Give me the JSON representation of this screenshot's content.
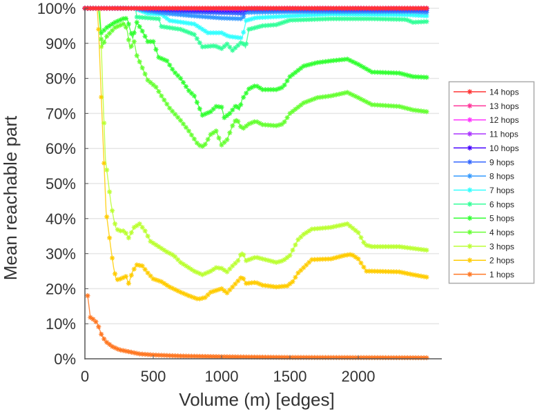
{
  "chart_data": {
    "type": "line",
    "title": "",
    "xlabel": "Volume (m) [edges]",
    "ylabel": "Mean reachable part",
    "xlim": [
      0,
      2510
    ],
    "ylim": [
      0,
      100
    ],
    "x_ticks": [
      0,
      500,
      1000,
      1500,
      2000
    ],
    "x_tick_labels": [
      "0",
      "500",
      "1000",
      "1500",
      "2000"
    ],
    "y_ticks": [
      0,
      10,
      20,
      30,
      40,
      50,
      60,
      70,
      80,
      90,
      100
    ],
    "y_tick_labels": [
      "0%",
      "10%",
      "20%",
      "30%",
      "40%",
      "50%",
      "60%",
      "70%",
      "80%",
      "90%",
      "100%"
    ],
    "grid": "horizontal",
    "legend_position": "right",
    "marker": "star",
    "series": [
      {
        "name": "14 hops",
        "color": "#ff3333",
        "points": [
          [
            0,
            100
          ],
          [
            2500,
            100
          ]
        ]
      },
      {
        "name": "13 hops",
        "color": "#ff3399",
        "points": [
          [
            0,
            100
          ],
          [
            2500,
            100
          ]
        ]
      },
      {
        "name": "12 hops",
        "color": "#ff33ff",
        "points": [
          [
            0,
            100
          ],
          [
            2500,
            100
          ]
        ]
      },
      {
        "name": "11 hops",
        "color": "#aa33ff",
        "points": [
          [
            0,
            100
          ],
          [
            380,
            100
          ],
          [
            700,
            99.9
          ],
          [
            1150,
            99.8
          ],
          [
            1200,
            100
          ],
          [
            2500,
            100
          ]
        ]
      },
      {
        "name": "10 hops",
        "color": "#4400ff",
        "points": [
          [
            0,
            100
          ],
          [
            380,
            100
          ],
          [
            600,
            99.7
          ],
          [
            900,
            99.5
          ],
          [
            1150,
            99.4
          ],
          [
            1200,
            99.9
          ],
          [
            2500,
            99.9
          ]
        ]
      },
      {
        "name": "9 hops",
        "color": "#3366ff",
        "points": [
          [
            0,
            100
          ],
          [
            370,
            100
          ],
          [
            500,
            99.5
          ],
          [
            700,
            99
          ],
          [
            900,
            98.8
          ],
          [
            1100,
            98.6
          ],
          [
            1160,
            98.5
          ],
          [
            1180,
            99.5
          ],
          [
            1500,
            99.6
          ],
          [
            2500,
            99.4
          ]
        ]
      },
      {
        "name": "8 hops",
        "color": "#3399ff",
        "points": [
          [
            0,
            100
          ],
          [
            370,
            100
          ],
          [
            450,
            99.3
          ],
          [
            600,
            98.5
          ],
          [
            800,
            97.8
          ],
          [
            1000,
            97.2
          ],
          [
            1150,
            97
          ],
          [
            1180,
            98.8
          ],
          [
            1500,
            99
          ],
          [
            2400,
            99
          ],
          [
            2500,
            98.8
          ]
        ]
      },
      {
        "name": "7 hops",
        "color": "#33ffff",
        "points": [
          [
            0,
            100
          ],
          [
            360,
            100
          ],
          [
            460,
            98.5
          ],
          [
            560,
            98.3
          ],
          [
            620,
            96.5
          ],
          [
            800,
            95.5
          ],
          [
            900,
            93
          ],
          [
            1000,
            93
          ],
          [
            1050,
            92
          ],
          [
            1150,
            91.5
          ],
          [
            1180,
            96.5
          ],
          [
            1250,
            97.3
          ],
          [
            1500,
            97.8
          ],
          [
            1800,
            98.3
          ],
          [
            2100,
            98.2
          ],
          [
            2380,
            98.1
          ],
          [
            2500,
            97.8
          ]
        ]
      },
      {
        "name": "6 hops",
        "color": "#33ff99",
        "points": [
          [
            0,
            100
          ],
          [
            370,
            100
          ],
          [
            380,
            97.5
          ],
          [
            540,
            97
          ],
          [
            560,
            94.8
          ],
          [
            700,
            94
          ],
          [
            800,
            92.5
          ],
          [
            860,
            89
          ],
          [
            950,
            89.3
          ],
          [
            1000,
            88.5
          ],
          [
            1040,
            89.8
          ],
          [
            1080,
            88
          ],
          [
            1150,
            90.5
          ],
          [
            1175,
            88.8
          ],
          [
            1200,
            94
          ],
          [
            1300,
            95
          ],
          [
            1400,
            95.3
          ],
          [
            1500,
            96.6
          ],
          [
            1800,
            97
          ],
          [
            2100,
            97
          ],
          [
            2350,
            96.8
          ],
          [
            2400,
            96
          ],
          [
            2500,
            96.2
          ]
        ]
      },
      {
        "name": "5 hops",
        "color": "#33ff33",
        "points": [
          [
            0,
            100
          ],
          [
            100,
            100
          ],
          [
            120,
            93
          ],
          [
            160,
            94.5
          ],
          [
            220,
            96
          ],
          [
            290,
            97.2
          ],
          [
            310,
            97
          ],
          [
            330,
            94
          ],
          [
            350,
            91.5
          ],
          [
            380,
            96
          ],
          [
            420,
            93.5
          ],
          [
            460,
            90.5
          ],
          [
            500,
            90.5
          ],
          [
            540,
            86
          ],
          [
            600,
            85
          ],
          [
            650,
            82
          ],
          [
            700,
            80
          ],
          [
            760,
            76.5
          ],
          [
            800,
            75
          ],
          [
            860,
            69.5
          ],
          [
            920,
            70.5
          ],
          [
            960,
            72
          ],
          [
            1000,
            71.8
          ],
          [
            1020,
            68.8
          ],
          [
            1060,
            70
          ],
          [
            1110,
            72.5
          ],
          [
            1130,
            71
          ],
          [
            1150,
            74
          ],
          [
            1200,
            77
          ],
          [
            1250,
            78
          ],
          [
            1300,
            76.8
          ],
          [
            1400,
            76.8
          ],
          [
            1450,
            77.5
          ],
          [
            1500,
            80.5
          ],
          [
            1600,
            83.5
          ],
          [
            1700,
            84.5
          ],
          [
            1800,
            85
          ],
          [
            1920,
            85.5
          ],
          [
            2000,
            84
          ],
          [
            2100,
            81.8
          ],
          [
            2300,
            81.5
          ],
          [
            2400,
            80.5
          ],
          [
            2500,
            80.3
          ]
        ]
      },
      {
        "name": "4 hops",
        "color": "#66ff33",
        "points": [
          [
            0,
            100
          ],
          [
            100,
            100
          ],
          [
            125,
            89
          ],
          [
            160,
            92
          ],
          [
            220,
            94.5
          ],
          [
            290,
            95.7
          ],
          [
            310,
            93.5
          ],
          [
            330,
            88.5
          ],
          [
            360,
            90.5
          ],
          [
            380,
            86.5
          ],
          [
            420,
            83
          ],
          [
            460,
            79.5
          ],
          [
            520,
            77.5
          ],
          [
            560,
            75
          ],
          [
            620,
            71.5
          ],
          [
            700,
            68
          ],
          [
            760,
            65
          ],
          [
            830,
            61
          ],
          [
            870,
            60.5
          ],
          [
            920,
            64
          ],
          [
            960,
            65
          ],
          [
            1000,
            61
          ],
          [
            1040,
            62.5
          ],
          [
            1080,
            66.5
          ],
          [
            1110,
            68.5
          ],
          [
            1150,
            65.5
          ],
          [
            1200,
            67
          ],
          [
            1250,
            67.8
          ],
          [
            1300,
            66.8
          ],
          [
            1400,
            66.5
          ],
          [
            1450,
            67
          ],
          [
            1500,
            70
          ],
          [
            1600,
            73
          ],
          [
            1700,
            74.5
          ],
          [
            1800,
            75
          ],
          [
            1920,
            76
          ],
          [
            2000,
            74.5
          ],
          [
            2100,
            72.5
          ],
          [
            2300,
            72
          ],
          [
            2400,
            71
          ],
          [
            2500,
            70.5
          ]
        ]
      },
      {
        "name": "3 hops",
        "color": "#bbff33",
        "points": [
          [
            0,
            100
          ],
          [
            110,
            100
          ],
          [
            120,
            89
          ],
          [
            130,
            77.5
          ],
          [
            150,
            57
          ],
          [
            190,
            44.5
          ],
          [
            210,
            40
          ],
          [
            230,
            37
          ],
          [
            260,
            36.5
          ],
          [
            290,
            36.5
          ],
          [
            320,
            34.5
          ],
          [
            360,
            37.5
          ],
          [
            400,
            38.5
          ],
          [
            440,
            36.5
          ],
          [
            480,
            33.5
          ],
          [
            540,
            32
          ],
          [
            600,
            30.5
          ],
          [
            650,
            29.5
          ],
          [
            700,
            27.5
          ],
          [
            760,
            26
          ],
          [
            800,
            25
          ],
          [
            860,
            24
          ],
          [
            920,
            25
          ],
          [
            960,
            26
          ],
          [
            1000,
            25.8
          ],
          [
            1040,
            24.8
          ],
          [
            1080,
            26.5
          ],
          [
            1120,
            28
          ],
          [
            1150,
            30.5
          ],
          [
            1180,
            28
          ],
          [
            1250,
            29
          ],
          [
            1300,
            28.5
          ],
          [
            1400,
            27.5
          ],
          [
            1450,
            28
          ],
          [
            1500,
            29.5
          ],
          [
            1560,
            34
          ],
          [
            1600,
            35.5
          ],
          [
            1660,
            37
          ],
          [
            1800,
            37.5
          ],
          [
            1920,
            38.5
          ],
          [
            2000,
            36
          ],
          [
            2050,
            32.5
          ],
          [
            2100,
            32
          ],
          [
            2300,
            32
          ],
          [
            2400,
            31.5
          ],
          [
            2500,
            31
          ]
        ]
      },
      {
        "name": "2 hops",
        "color": "#ffcc00",
        "points": [
          [
            0,
            100
          ],
          [
            90,
            100
          ],
          [
            100,
            94
          ],
          [
            130,
            65
          ],
          [
            155,
            42
          ],
          [
            190,
            31.5
          ],
          [
            210,
            26
          ],
          [
            230,
            22.5
          ],
          [
            260,
            22.8
          ],
          [
            300,
            23.5
          ],
          [
            320,
            21.5
          ],
          [
            350,
            25
          ],
          [
            380,
            26.8
          ],
          [
            420,
            26.5
          ],
          [
            460,
            24.5
          ],
          [
            500,
            22.8
          ],
          [
            560,
            22
          ],
          [
            620,
            20.5
          ],
          [
            700,
            19
          ],
          [
            760,
            18
          ],
          [
            830,
            17
          ],
          [
            880,
            17.5
          ],
          [
            920,
            19
          ],
          [
            960,
            19.5
          ],
          [
            1000,
            20
          ],
          [
            1040,
            18.8
          ],
          [
            1080,
            20.5
          ],
          [
            1150,
            23.5
          ],
          [
            1180,
            21.5
          ],
          [
            1250,
            21.8
          ],
          [
            1300,
            21
          ],
          [
            1400,
            20.5
          ],
          [
            1480,
            20.8
          ],
          [
            1520,
            22
          ],
          [
            1560,
            24.5
          ],
          [
            1600,
            26
          ],
          [
            1660,
            28.3
          ],
          [
            1800,
            28.5
          ],
          [
            1900,
            29.5
          ],
          [
            1950,
            29.8
          ],
          [
            2000,
            28.5
          ],
          [
            2060,
            25
          ],
          [
            2100,
            25
          ],
          [
            2300,
            24.8
          ],
          [
            2400,
            24
          ],
          [
            2500,
            23.3
          ]
        ]
      },
      {
        "name": "1 hops",
        "color": "#ff7722",
        "points": [
          [
            20,
            18
          ],
          [
            40,
            11.8
          ],
          [
            60,
            11.3
          ],
          [
            90,
            10.2
          ],
          [
            120,
            7
          ],
          [
            150,
            5
          ],
          [
            200,
            3.5
          ],
          [
            250,
            2.6
          ],
          [
            300,
            2.2
          ],
          [
            400,
            1.4
          ],
          [
            500,
            1.1
          ],
          [
            700,
            0.8
          ],
          [
            1000,
            0.6
          ],
          [
            1500,
            0.4
          ],
          [
            2000,
            0.35
          ],
          [
            2500,
            0.3
          ]
        ]
      }
    ]
  }
}
